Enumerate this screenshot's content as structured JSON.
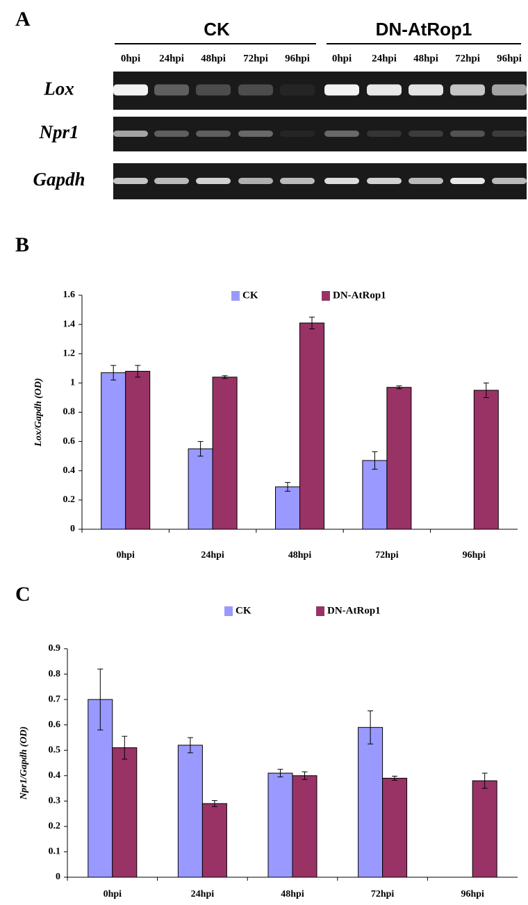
{
  "panels": [
    "A",
    "B",
    "C"
  ],
  "gel": {
    "groups": [
      "CK",
      "DN-AtRop1"
    ],
    "lanes": [
      "0hpi",
      "24hpi",
      "48hpi",
      "72hpi",
      "96hpi",
      "0hpi",
      "24hpi",
      "48hpi",
      "72hpi",
      "96hpi"
    ],
    "genes": [
      "Lox",
      "Npr1",
      "Gapdh"
    ]
  },
  "chart_data": [
    {
      "type": "bar",
      "y_label": "Lox/Gapdh (OD)",
      "categories": [
        "0hpi",
        "24hpi",
        "48hpi",
        "72hpi",
        "96hpi"
      ],
      "series": [
        {
          "name": "CK",
          "color": "#9999ff",
          "values": [
            1.07,
            0.55,
            0.29,
            0.47,
            null
          ],
          "errors": [
            0.05,
            0.05,
            0.03,
            0.06,
            null
          ]
        },
        {
          "name": "DN-AtRop1",
          "color": "#993366",
          "values": [
            1.08,
            1.04,
            1.41,
            0.97,
            0.95
          ],
          "errors": [
            0.04,
            0.01,
            0.04,
            0.01,
            0.05
          ]
        }
      ],
      "ylim": [
        0,
        1.6
      ],
      "yticks": [
        0,
        0.2,
        0.4,
        0.6,
        0.8,
        1,
        1.2,
        1.4,
        1.6
      ],
      "grid": false
    },
    {
      "type": "bar",
      "y_label": "Npr1/Gapdh (OD)",
      "categories": [
        "0hpi",
        "24hpi",
        "48hpi",
        "72hpi",
        "96hpi"
      ],
      "series": [
        {
          "name": "CK",
          "color": "#9999ff",
          "values": [
            0.7,
            0.52,
            0.41,
            0.59,
            null
          ],
          "errors": [
            0.12,
            0.03,
            0.015,
            0.065,
            null
          ]
        },
        {
          "name": "DN-AtRop1",
          "color": "#993366",
          "values": [
            0.51,
            0.29,
            0.4,
            0.39,
            0.38
          ],
          "errors": [
            0.045,
            0.012,
            0.015,
            0.008,
            0.03
          ]
        }
      ],
      "ylim": [
        0,
        0.9
      ],
      "yticks": [
        0,
        0.1,
        0.2,
        0.3,
        0.4,
        0.5,
        0.6,
        0.7,
        0.8,
        0.9
      ],
      "grid": false
    }
  ]
}
